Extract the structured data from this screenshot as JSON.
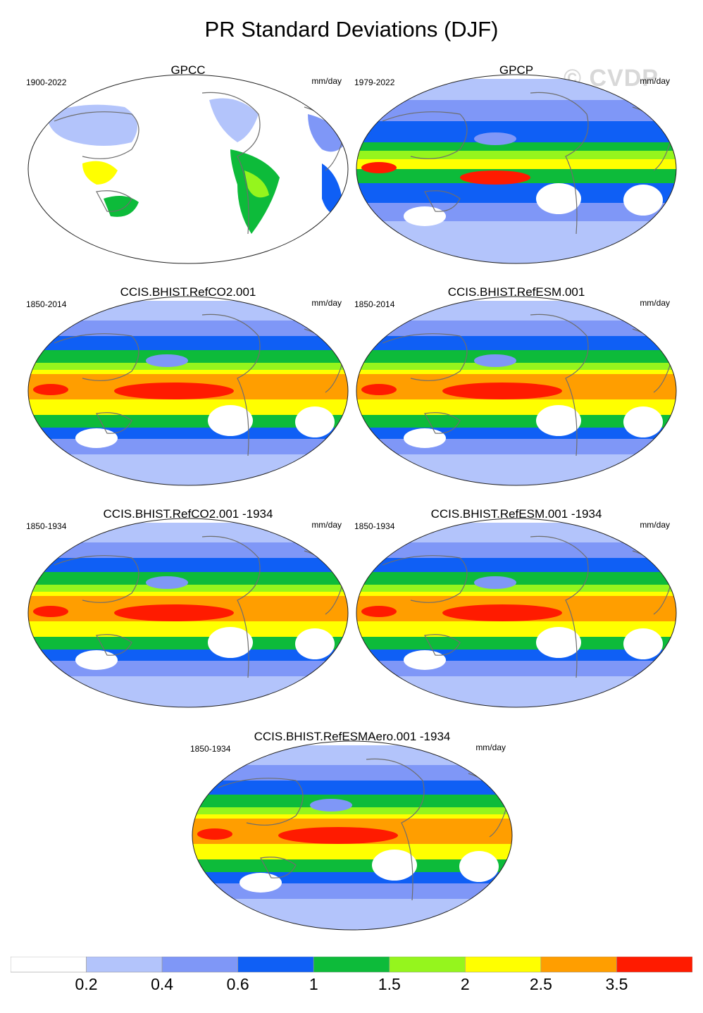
{
  "title": "PR Standard Deviations (DJF)",
  "watermark": "© CVDP",
  "panels": [
    {
      "id": "gpcc",
      "title": "GPCC",
      "period": "1900-2022",
      "units": "mm/day",
      "style": "obs-land"
    },
    {
      "id": "gpcp",
      "title": "GPCP",
      "period": "1979-2022",
      "units": "mm/day",
      "style": "obs"
    },
    {
      "id": "refco2",
      "title": "CCIS.BHIST.RefCO2.001",
      "period": "1850-2014",
      "units": "mm/day",
      "style": "model"
    },
    {
      "id": "refesm",
      "title": "CCIS.BHIST.RefESM.001",
      "period": "1850-2014",
      "units": "mm/day",
      "style": "model"
    },
    {
      "id": "refco2-1934",
      "title": "CCIS.BHIST.RefCO2.001 -1934",
      "period": "1850-1934",
      "units": "mm/day",
      "style": "model"
    },
    {
      "id": "refesm-1934",
      "title": "CCIS.BHIST.RefESM.001 -1934",
      "period": "1850-1934",
      "units": "mm/day",
      "style": "model"
    },
    {
      "id": "refesmaero-1934",
      "title": "CCIS.BHIST.RefESMAero.001 -1934",
      "period": "1850-1934",
      "units": "mm/day",
      "style": "model"
    }
  ],
  "colorbar": {
    "colors": [
      "#ffffff",
      "#b3c4fb",
      "#7f97f7",
      "#0f5ff5",
      "#0dbb3a",
      "#95f51d",
      "#ffff00",
      "#ff9e00",
      "#ff1b00"
    ],
    "labels": [
      "0.2",
      "0.4",
      "0.6",
      "1",
      "1.5",
      "2",
      "2.5",
      "3.5"
    ]
  }
}
